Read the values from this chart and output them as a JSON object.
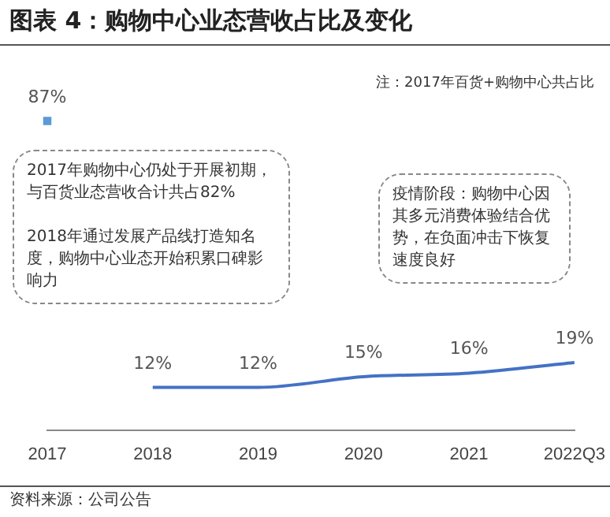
{
  "chart_data": {
    "type": "line",
    "title": "图表 4：购物中心业态营收占比及变化",
    "categories": [
      "2017",
      "2018",
      "2019",
      "2020",
      "2021",
      "2022Q3"
    ],
    "series": [
      {
        "color": "#4472c4",
        "marker": "none",
        "values": [
          null,
          12,
          12,
          15,
          16,
          19
        ],
        "value_labels": [
          null,
          "12%",
          "12%",
          "15%",
          "16%",
          "19%"
        ]
      },
      {
        "type": "scatter",
        "marker": "square",
        "color": "#5b9bd5",
        "values": [
          87,
          null,
          null,
          null,
          null,
          null
        ],
        "value_labels": [
          "87%",
          null,
          null,
          null,
          null,
          null
        ]
      }
    ],
    "legend": false,
    "grid": false,
    "tick_labels": "x",
    "annotations": [
      "注：2017年百货+购物中心共占比",
      "2017年购物中心仍处于开展初期，与百货业态营收合计共占82%\n\n2018年通过发展产品线打造知名度，购物中心业态开始积累口碑影响力",
      "疫情阶段：购物中心因其多元消费体验结合优势，在负面冲击下恢复速度良好",
      "资料来源：公司公告"
    ]
  }
}
